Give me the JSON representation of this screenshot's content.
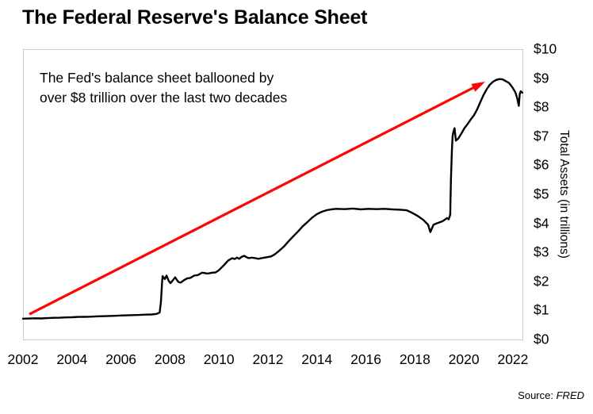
{
  "header": {
    "title": "The Federal Reserve's Balance Sheet"
  },
  "annotation": {
    "line1": "The Fed's balance sheet ballooned by",
    "line2": "over $8 trillion over the last two decades"
  },
  "source": {
    "label": "Source:",
    "name": "FRED"
  },
  "chart_data": {
    "type": "line",
    "title": "The Federal Reserve's Balance Sheet",
    "xlabel": "",
    "ylabel": "Total Assets (in trillions)",
    "x_range": [
      2002,
      2022.39
    ],
    "y_range": [
      0,
      10
    ],
    "grid": false,
    "legend_position": "none",
    "x_ticks": [
      2002,
      2004,
      2006,
      2008,
      2010,
      2012,
      2014,
      2016,
      2018,
      2020,
      2022
    ],
    "y_ticks": [
      {
        "value": 0,
        "label": "$0"
      },
      {
        "value": 1,
        "label": "$1"
      },
      {
        "value": 2,
        "label": "$2"
      },
      {
        "value": 3,
        "label": "$3"
      },
      {
        "value": 4,
        "label": "$4"
      },
      {
        "value": 5,
        "label": "$5"
      },
      {
        "value": 6,
        "label": "$6"
      },
      {
        "value": 7,
        "label": "$7"
      },
      {
        "value": 8,
        "label": "$8"
      },
      {
        "value": 9,
        "label": "$9"
      },
      {
        "value": 10,
        "label": "$10"
      }
    ],
    "colors": {
      "line": "#000000",
      "arrow": "#fb0505",
      "frame": "#c9c9c9"
    },
    "arrow": {
      "from": [
        2002.26,
        0.87
      ],
      "to": [
        2020.87,
        8.88
      ]
    },
    "series": [
      {
        "name": "Federal Reserve total assets (USD trillions)",
        "points": [
          [
            2002.0,
            0.715
          ],
          [
            2002.25,
            0.72
          ],
          [
            2002.5,
            0.73
          ],
          [
            2002.75,
            0.725
          ],
          [
            2003.0,
            0.735
          ],
          [
            2003.25,
            0.745
          ],
          [
            2003.5,
            0.75
          ],
          [
            2003.75,
            0.76
          ],
          [
            2004.0,
            0.765
          ],
          [
            2004.25,
            0.775
          ],
          [
            2004.5,
            0.78
          ],
          [
            2004.75,
            0.785
          ],
          [
            2005.0,
            0.795
          ],
          [
            2005.25,
            0.8
          ],
          [
            2005.5,
            0.81
          ],
          [
            2005.75,
            0.815
          ],
          [
            2006.0,
            0.825
          ],
          [
            2006.25,
            0.83
          ],
          [
            2006.5,
            0.84
          ],
          [
            2006.75,
            0.845
          ],
          [
            2007.0,
            0.855
          ],
          [
            2007.25,
            0.862
          ],
          [
            2007.45,
            0.88
          ],
          [
            2007.58,
            0.93
          ],
          [
            2007.63,
            1.3
          ],
          [
            2007.68,
            2.0
          ],
          [
            2007.7,
            2.18
          ],
          [
            2007.79,
            2.08
          ],
          [
            2007.86,
            2.2
          ],
          [
            2007.95,
            2.02
          ],
          [
            2008.02,
            1.94
          ],
          [
            2008.12,
            2.04
          ],
          [
            2008.21,
            2.14
          ],
          [
            2008.34,
            1.98
          ],
          [
            2008.44,
            1.96
          ],
          [
            2008.57,
            2.04
          ],
          [
            2008.7,
            2.1
          ],
          [
            2008.83,
            2.12
          ],
          [
            2008.99,
            2.2
          ],
          [
            2009.15,
            2.22
          ],
          [
            2009.31,
            2.3
          ],
          [
            2009.54,
            2.27
          ],
          [
            2009.73,
            2.3
          ],
          [
            2009.86,
            2.31
          ],
          [
            2009.99,
            2.38
          ],
          [
            2010.19,
            2.55
          ],
          [
            2010.38,
            2.72
          ],
          [
            2010.54,
            2.8
          ],
          [
            2010.64,
            2.77
          ],
          [
            2010.74,
            2.82
          ],
          [
            2010.83,
            2.78
          ],
          [
            2010.93,
            2.85
          ],
          [
            2011.03,
            2.88
          ],
          [
            2011.13,
            2.83
          ],
          [
            2011.22,
            2.8
          ],
          [
            2011.35,
            2.82
          ],
          [
            2011.48,
            2.8
          ],
          [
            2011.61,
            2.78
          ],
          [
            2011.74,
            2.8
          ],
          [
            2011.87,
            2.82
          ],
          [
            2012.0,
            2.84
          ],
          [
            2012.13,
            2.86
          ],
          [
            2012.26,
            2.92
          ],
          [
            2012.45,
            3.05
          ],
          [
            2012.65,
            3.2
          ],
          [
            2012.84,
            3.38
          ],
          [
            2013.03,
            3.55
          ],
          [
            2013.23,
            3.72
          ],
          [
            2013.42,
            3.9
          ],
          [
            2013.62,
            4.05
          ],
          [
            2013.81,
            4.2
          ],
          [
            2014.0,
            4.32
          ],
          [
            2014.2,
            4.4
          ],
          [
            2014.39,
            4.45
          ],
          [
            2014.59,
            4.48
          ],
          [
            2014.78,
            4.5
          ],
          [
            2015.14,
            4.49
          ],
          [
            2015.46,
            4.51
          ],
          [
            2015.79,
            4.48
          ],
          [
            2016.11,
            4.5
          ],
          [
            2016.43,
            4.49
          ],
          [
            2016.76,
            4.5
          ],
          [
            2017.08,
            4.48
          ],
          [
            2017.4,
            4.47
          ],
          [
            2017.66,
            4.45
          ],
          [
            2017.89,
            4.36
          ],
          [
            2018.12,
            4.25
          ],
          [
            2018.34,
            4.12
          ],
          [
            2018.54,
            3.95
          ],
          [
            2018.63,
            3.7
          ],
          [
            2018.76,
            3.95
          ],
          [
            2018.89,
            4.0
          ],
          [
            2019.06,
            4.05
          ],
          [
            2019.18,
            4.1
          ],
          [
            2019.31,
            4.18
          ],
          [
            2019.38,
            4.14
          ],
          [
            2019.44,
            4.3
          ],
          [
            2019.47,
            5.5
          ],
          [
            2019.51,
            6.5
          ],
          [
            2019.54,
            7.0
          ],
          [
            2019.57,
            7.15
          ],
          [
            2019.62,
            7.28
          ],
          [
            2019.67,
            6.85
          ],
          [
            2019.77,
            6.92
          ],
          [
            2019.9,
            7.1
          ],
          [
            2020.02,
            7.28
          ],
          [
            2020.15,
            7.42
          ],
          [
            2020.28,
            7.58
          ],
          [
            2020.41,
            7.72
          ],
          [
            2020.54,
            7.92
          ],
          [
            2020.67,
            8.18
          ],
          [
            2020.8,
            8.42
          ],
          [
            2020.93,
            8.62
          ],
          [
            2021.06,
            8.78
          ],
          [
            2021.19,
            8.88
          ],
          [
            2021.32,
            8.94
          ],
          [
            2021.45,
            8.97
          ],
          [
            2021.58,
            8.96
          ],
          [
            2021.71,
            8.9
          ],
          [
            2021.84,
            8.84
          ],
          [
            2021.97,
            8.7
          ],
          [
            2022.1,
            8.52
          ],
          [
            2022.18,
            8.3
          ],
          [
            2022.24,
            8.05
          ],
          [
            2022.28,
            8.45
          ],
          [
            2022.32,
            8.55
          ],
          [
            2022.39,
            8.5
          ]
        ]
      }
    ]
  }
}
